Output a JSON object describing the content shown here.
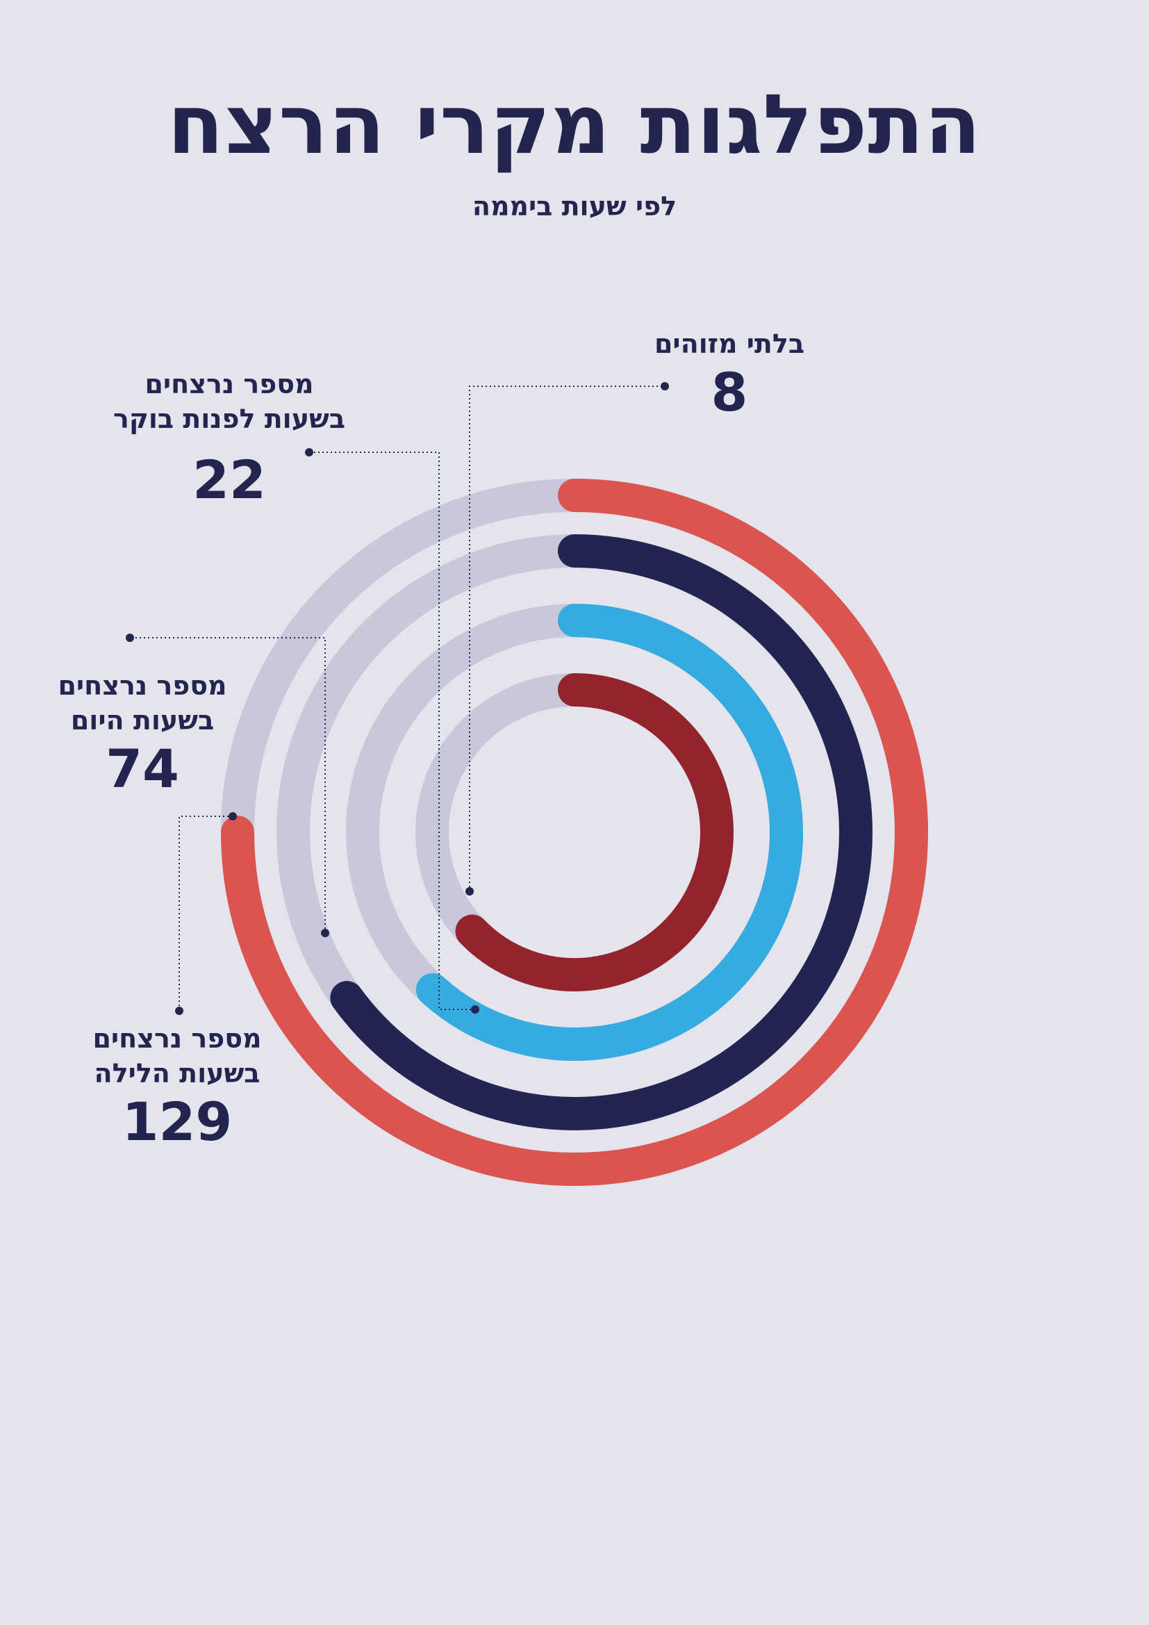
{
  "title": "התפלגות מקרי הרצח",
  "subtitle": "לפי שעות ביממה",
  "colors": {
    "background": "#e4e4ed",
    "text": "#23254f",
    "track": "#c9c8da",
    "leader": "#23254f"
  },
  "chart_data": {
    "type": "radial-bar",
    "title": "התפלגות מקרי הרצח",
    "subtitle": "לפי שעות ביממה",
    "series": [
      {
        "name": "מספר נרצחים בשעות הלילה",
        "label_line1": "מספר נרצחים",
        "label_line2": "בשעות הלילה",
        "value": 129,
        "color": "#db5450"
      },
      {
        "name": "מספר נרצחים בשעות היום",
        "label_line1": "מספר נרצחים",
        "label_line2": "בשעות היום",
        "value": 74,
        "color": "#232452"
      },
      {
        "name": "מספר נרצחים בשעות לפנות בוקר",
        "label_line1": "מספר נרצחים",
        "label_line2": "בשעות לפנות בוקר",
        "value": 22,
        "color": "#35abe0"
      },
      {
        "name": "בלתי מזוהים",
        "label_line1": "בלתי מזוהים",
        "label_line2": "",
        "value": 8,
        "color": "#93232d"
      }
    ]
  }
}
